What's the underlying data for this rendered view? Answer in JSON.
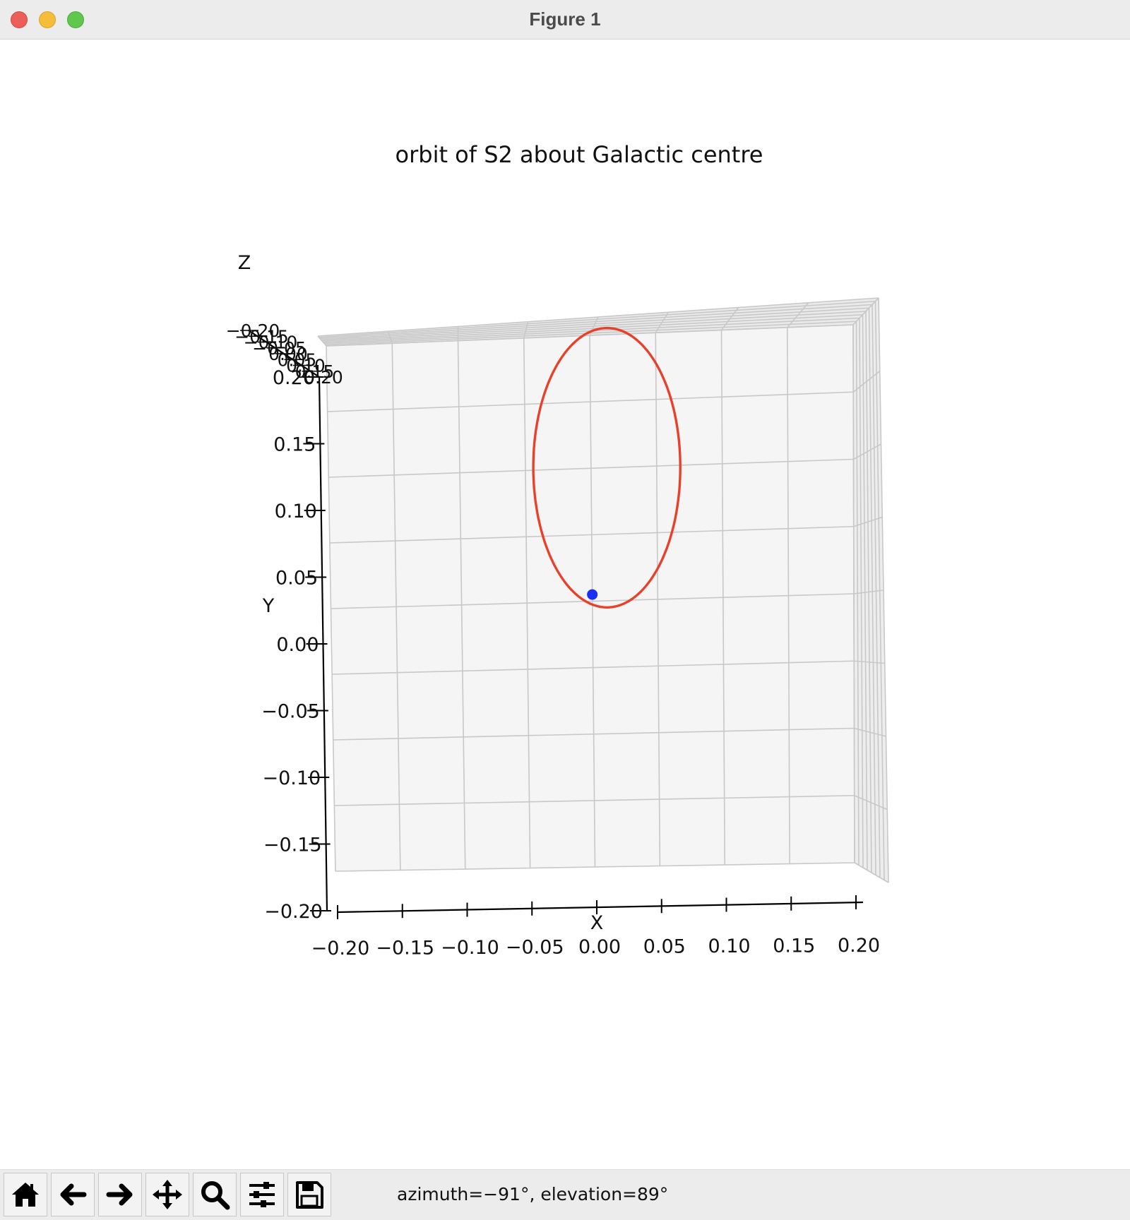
{
  "window": {
    "title": "Figure 1",
    "controls": [
      "close",
      "minimize",
      "maximize"
    ]
  },
  "toolbar": {
    "buttons": [
      {
        "name": "home",
        "icon": "home-icon"
      },
      {
        "name": "back",
        "icon": "arrow-left-icon"
      },
      {
        "name": "forward",
        "icon": "arrow-right-icon"
      },
      {
        "name": "pan",
        "icon": "move-icon"
      },
      {
        "name": "zoom",
        "icon": "magnifier-icon"
      },
      {
        "name": "configure-subplots",
        "icon": "sliders-icon"
      },
      {
        "name": "save",
        "icon": "floppy-disk-icon"
      }
    ],
    "status": "azimuth=−91°, elevation=89°"
  },
  "chart_data": {
    "type": "line3d",
    "title": "orbit of S2 about Galactic centre",
    "xlabel": "X",
    "ylabel": "Y",
    "zlabel": "Z",
    "xlim": [
      -0.2,
      0.2
    ],
    "ylim": [
      -0.2,
      0.2
    ],
    "zlim": [
      -0.2,
      0.2
    ],
    "xticks": [
      "−0.20",
      "−0.15",
      "−0.10",
      "−0.05",
      "0.00",
      "0.05",
      "0.10",
      "0.15",
      "0.20"
    ],
    "yticks": [
      "−0.20",
      "−0.15",
      "−0.10",
      "−0.05",
      "0.00",
      "0.05",
      "0.10",
      "0.15",
      "0.20"
    ],
    "zticks": [
      "−0.20",
      "−0.15",
      "−0.10",
      "−0.05",
      "0.00",
      "0.05",
      "0.10",
      "0.15",
      "0.20"
    ],
    "grid": true,
    "view": {
      "azimuth": -91,
      "elevation": 89
    },
    "series": [
      {
        "kind": "orbit",
        "color": "#e8402a",
        "ellipse": {
          "center_x": 0.012,
          "center_y": 0.1,
          "semi_axis_x": 0.056,
          "semi_axis_y": 0.105
        }
      },
      {
        "kind": "point",
        "color": "#1a2ef5",
        "x": 0.0,
        "y": 0.005
      }
    ]
  }
}
